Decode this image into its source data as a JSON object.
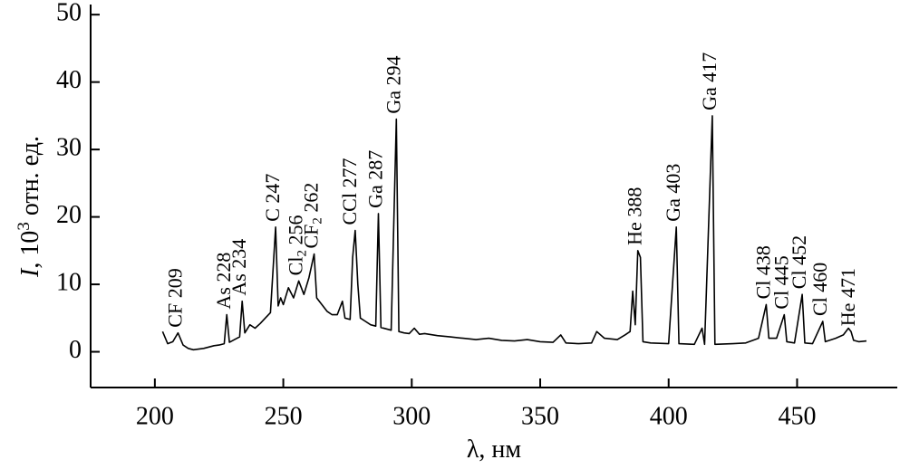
{
  "chart_data": {
    "type": "line",
    "x_label": "λ, нм",
    "y_label": {
      "italic": "I",
      "pre": ", 10",
      "sup": "3",
      "post": " отн. ед."
    },
    "xlim": [
      175,
      489
    ],
    "ylim": [
      -5.3,
      51.5
    ],
    "xticks": [
      200,
      250,
      300,
      350,
      400,
      450
    ],
    "yticks": [
      0,
      10,
      20,
      30,
      40,
      50
    ],
    "color": "#000000",
    "series": [
      {
        "x": [
          203,
          205,
          207,
          209,
          211,
          213,
          215,
          217,
          219,
          221,
          223,
          225,
          227,
          228,
          229,
          231,
          233,
          234,
          235,
          237,
          239,
          241,
          243,
          245,
          247,
          248,
          249,
          250,
          252,
          254,
          256,
          258,
          260,
          262,
          263,
          265,
          267,
          269,
          271,
          273,
          274,
          276,
          277,
          278,
          279,
          280,
          282,
          284,
          286,
          287,
          288,
          290,
          292,
          294,
          295,
          297,
          299,
          301,
          303,
          305,
          310,
          315,
          320,
          325,
          330,
          335,
          340,
          345,
          350,
          355,
          358,
          360,
          365,
          370,
          372,
          375,
          380,
          383,
          385,
          386,
          387,
          388,
          389,
          390,
          393,
          400,
          403,
          404,
          410,
          413,
          414,
          417,
          418,
          425,
          430,
          435,
          438,
          439,
          442,
          445,
          446,
          449,
          452,
          453,
          456,
          460,
          461,
          465,
          468,
          470,
          471,
          472,
          474,
          477
        ],
        "values": [
          3.0,
          1.2,
          1.5,
          2.8,
          1.0,
          0.5,
          0.3,
          0.4,
          0.5,
          0.7,
          0.9,
          1.0,
          1.2,
          5.5,
          1.4,
          1.8,
          2.2,
          7.5,
          2.8,
          4.0,
          3.5,
          4.2,
          5.0,
          5.8,
          18.5,
          6.8,
          8.0,
          7.0,
          9.5,
          8.0,
          10.5,
          8.5,
          11.0,
          14.5,
          8.0,
          7.0,
          6.0,
          5.5,
          5.5,
          7.5,
          5.0,
          4.8,
          14.0,
          18.0,
          10.0,
          5.0,
          4.5,
          4.0,
          3.8,
          20.5,
          3.6,
          3.4,
          3.2,
          34.5,
          3.0,
          2.8,
          2.7,
          3.5,
          2.6,
          2.7,
          2.4,
          2.2,
          2.0,
          1.8,
          2.0,
          1.7,
          1.6,
          1.8,
          1.5,
          1.4,
          2.5,
          1.3,
          1.2,
          1.3,
          3.0,
          2.0,
          1.8,
          2.5,
          3.0,
          9.0,
          4.0,
          15.0,
          14.0,
          1.5,
          1.3,
          1.2,
          18.5,
          1.2,
          1.1,
          3.5,
          1.1,
          35.0,
          1.1,
          1.2,
          1.3,
          2.0,
          7.0,
          2.0,
          2.0,
          5.5,
          1.5,
          1.3,
          8.5,
          1.3,
          1.2,
          4.5,
          1.5,
          2.0,
          2.5,
          3.5,
          3.0,
          1.7,
          1.5,
          1.6
        ]
      }
    ],
    "annotations": [
      {
        "text": "CF",
        "suffix": " 209",
        "x": 209,
        "y": 2.8
      },
      {
        "text": "As",
        "suffix": " 228",
        "x": 228,
        "y": 5.5
      },
      {
        "text": "As",
        "suffix": " 234",
        "x": 234,
        "y": 7.5
      },
      {
        "text": "C",
        "suffix": " 247",
        "x": 247,
        "y": 18.5
      },
      {
        "text": "Cl",
        "sub": "2",
        "suffix": " 256",
        "x": 256,
        "y": 10.5
      },
      {
        "text": "CF",
        "sub": "2",
        "suffix": " 262",
        "x": 262,
        "y": 14.5
      },
      {
        "text": "CCl",
        "suffix": " 277",
        "x": 277,
        "y": 18.0
      },
      {
        "text": "Ga",
        "suffix": " 287",
        "x": 287,
        "y": 20.5
      },
      {
        "text": "Ga",
        "suffix": " 294",
        "x": 294,
        "y": 34.5
      },
      {
        "text": "He",
        "suffix": " 388",
        "x": 388,
        "y": 15.0
      },
      {
        "text": "Ga",
        "suffix": " 403",
        "x": 403,
        "y": 18.5
      },
      {
        "text": "Ga",
        "suffix": " 417",
        "x": 417,
        "y": 35.0
      },
      {
        "text": "Cl",
        "suffix": " 438",
        "x": 438,
        "y": 7.0
      },
      {
        "text": "Cl",
        "suffix": " 445",
        "x": 445,
        "y": 5.5
      },
      {
        "text": "Cl",
        "suffix": " 452",
        "x": 452,
        "y": 8.5
      },
      {
        "text": "Cl",
        "suffix": " 460",
        "x": 460,
        "y": 4.5
      },
      {
        "text": "He",
        "suffix": " 471",
        "x": 471,
        "y": 3.0
      }
    ]
  }
}
